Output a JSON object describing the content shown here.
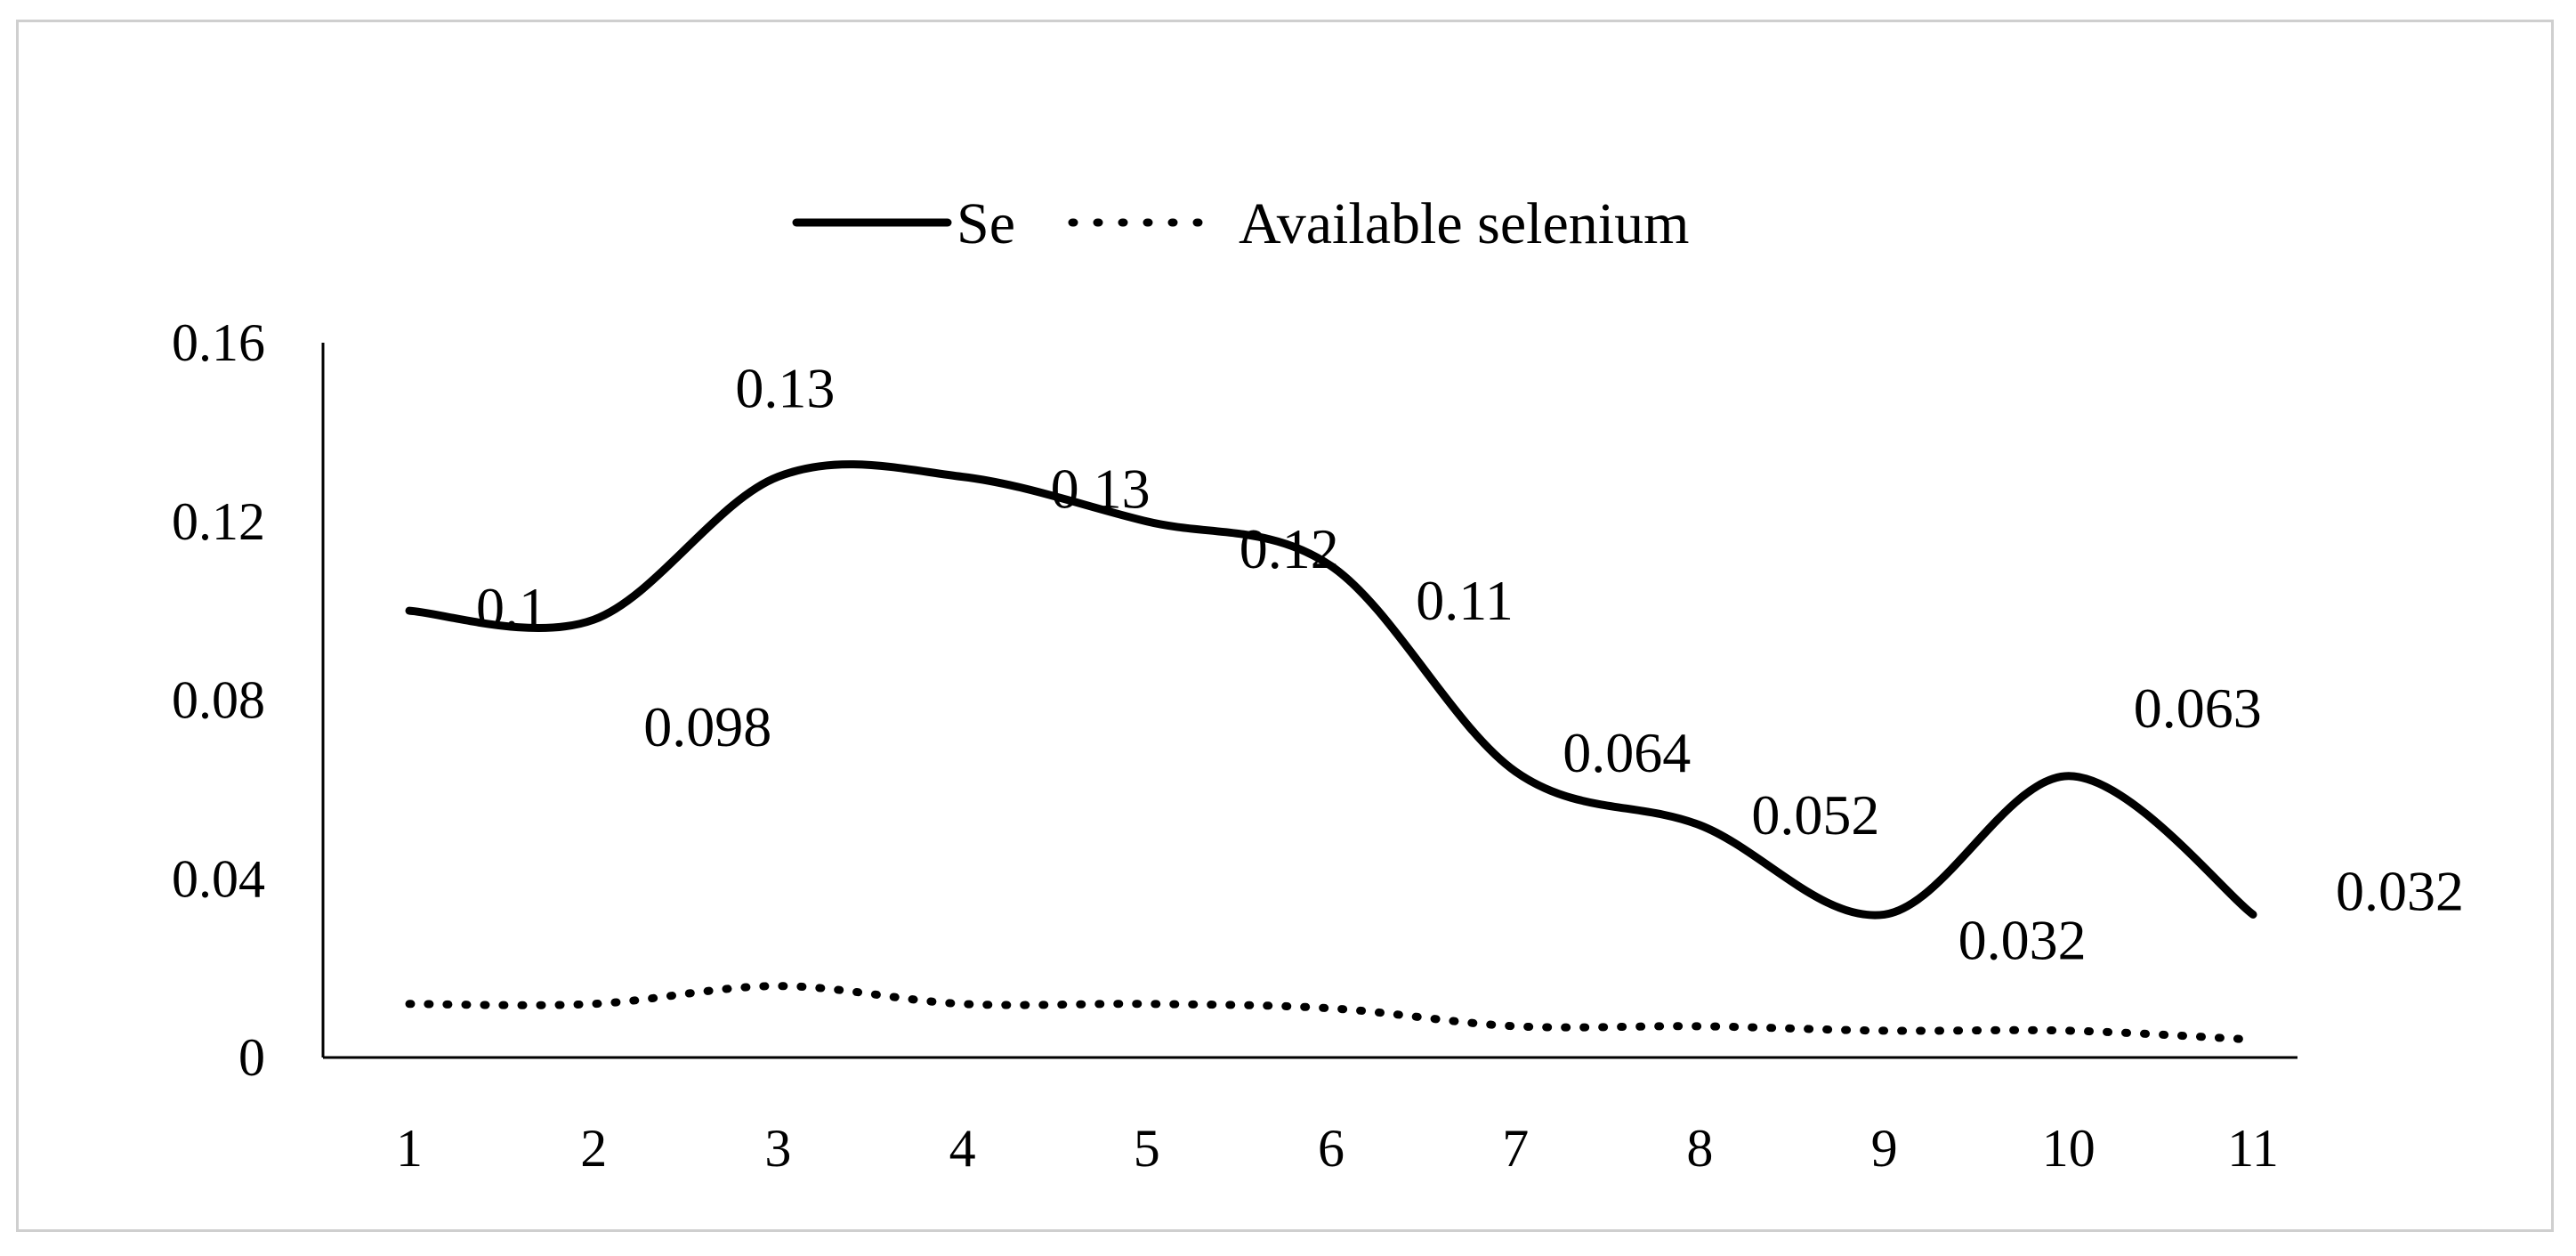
{
  "chart_data": {
    "type": "line",
    "title": "",
    "xlabel": "",
    "ylabel": "",
    "categories": [
      "1",
      "2",
      "3",
      "4",
      "5",
      "6",
      "7",
      "8",
      "9",
      "10",
      "11"
    ],
    "ylim": [
      0,
      0.16
    ],
    "yticks": [
      "0",
      "0.04",
      "0.08",
      "0.12",
      "0.16"
    ],
    "grid": false,
    "legend_position": "top-center",
    "series": [
      {
        "name": "Se",
        "style": "solid",
        "color": "#000000",
        "values": [
          0.1,
          0.098,
          0.13,
          0.13,
          0.12,
          0.11,
          0.064,
          0.052,
          0.032,
          0.063,
          0.032
        ],
        "labels": [
          "0.1",
          "0.098",
          "0.13",
          "0.13",
          "0.12",
          "0.11",
          "0.064",
          "0.052",
          "0.032",
          "0.063",
          "0.032"
        ]
      },
      {
        "name": "Available selenium",
        "style": "dotted",
        "color": "#000000",
        "values": [
          0.012,
          0.012,
          0.016,
          0.012,
          0.012,
          0.011,
          0.007,
          0.007,
          0.006,
          0.006,
          0.004
        ]
      }
    ]
  }
}
